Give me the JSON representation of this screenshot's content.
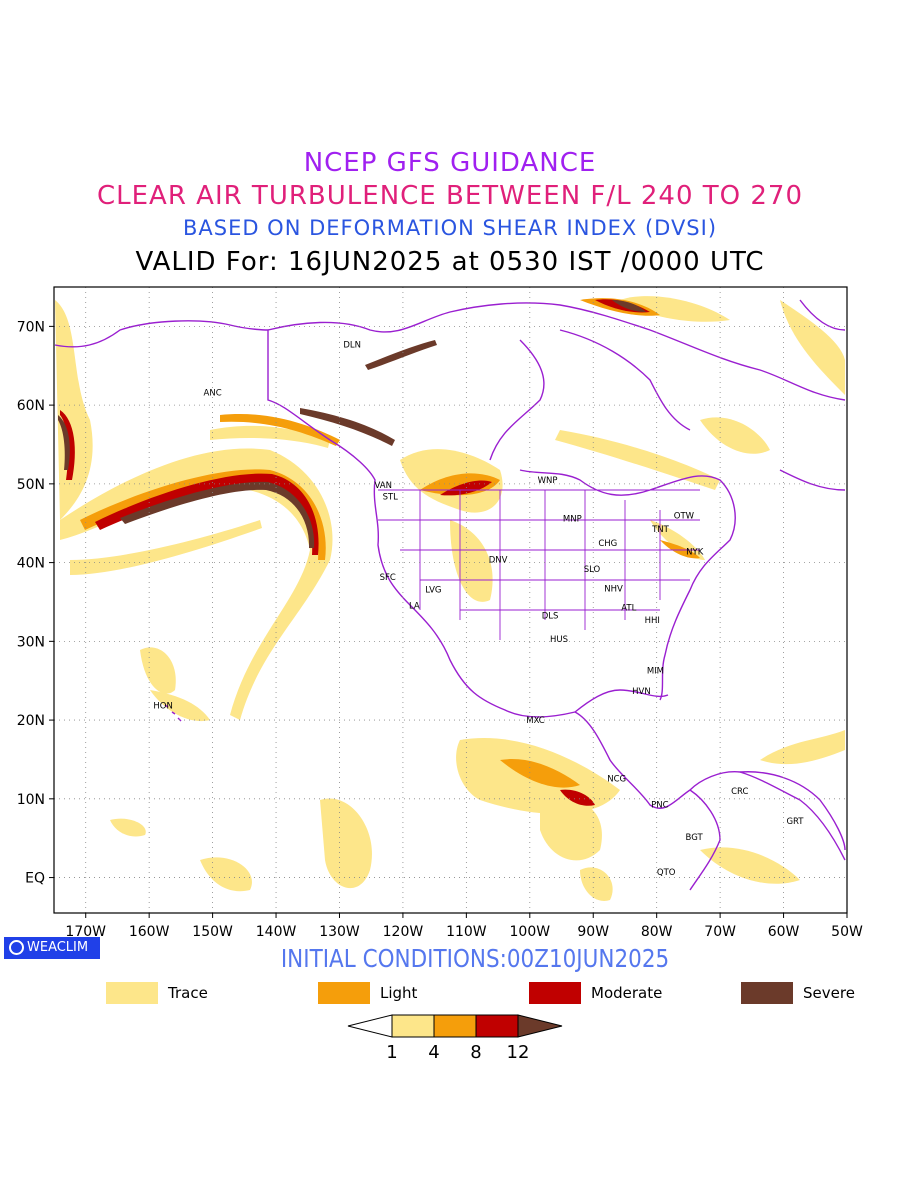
{
  "header": {
    "title_line1": "NCEP GFS GUIDANCE",
    "title_line2": "CLEAR AIR TURBULENCE BETWEEN F/L 240 TO 270",
    "title_line3": "BASED ON DEFORMATION SHEAR INDEX (DVSI)",
    "title_line4": "VALID For: 16JUN2025 at 0530 IST /0000 UTC"
  },
  "map": {
    "lon_ticks": [
      "170W",
      "160W",
      "150W",
      "140W",
      "130W",
      "120W",
      "110W",
      "100W",
      "90W",
      "80W",
      "70W",
      "60W",
      "50W"
    ],
    "lat_ticks": [
      "70N",
      "60N",
      "50N",
      "40N",
      "30N",
      "20N",
      "10N",
      "EQ"
    ],
    "stations": [
      {
        "name": "ANC",
        "lon": -150,
        "lat": 61.2
      },
      {
        "name": "DLN",
        "lon": -128,
        "lat": 67.3
      },
      {
        "name": "VAN",
        "lon": -123.1,
        "lat": 49.5
      },
      {
        "name": "STL",
        "lon": -122,
        "lat": 48
      },
      {
        "name": "WNP",
        "lon": -97.2,
        "lat": 50.1
      },
      {
        "name": "MNP",
        "lon": -93.3,
        "lat": 45.2
      },
      {
        "name": "OTW",
        "lon": -75.7,
        "lat": 45.6
      },
      {
        "name": "TNT",
        "lon": -79.4,
        "lat": 43.9
      },
      {
        "name": "CHG",
        "lon": -87.7,
        "lat": 42.1
      },
      {
        "name": "NYK",
        "lon": -74,
        "lat": 41
      },
      {
        "name": "DNV",
        "lon": -105,
        "lat": 40
      },
      {
        "name": "SFC",
        "lon": -122.4,
        "lat": 37.8
      },
      {
        "name": "SLO",
        "lon": -90.2,
        "lat": 38.8
      },
      {
        "name": "LVG",
        "lon": -115.2,
        "lat": 36.2
      },
      {
        "name": "NHV",
        "lon": -86.8,
        "lat": 36.3
      },
      {
        "name": "LA",
        "lon": -118.2,
        "lat": 34.2
      },
      {
        "name": "ATL",
        "lon": -84.4,
        "lat": 33.9
      },
      {
        "name": "DLS",
        "lon": -96.8,
        "lat": 32.9
      },
      {
        "name": "HHI",
        "lon": -80.7,
        "lat": 32.3
      },
      {
        "name": "HUS",
        "lon": -95.4,
        "lat": 29.9
      },
      {
        "name": "MIM",
        "lon": -80.2,
        "lat": 25.9
      },
      {
        "name": "HVN",
        "lon": -82.4,
        "lat": 23.3
      },
      {
        "name": "HON",
        "lon": -157.8,
        "lat": 21.5
      },
      {
        "name": "MXC",
        "lon": -99.1,
        "lat": 19.6
      },
      {
        "name": "NCG",
        "lon": -86.3,
        "lat": 12.2
      },
      {
        "name": "CRC",
        "lon": -66.9,
        "lat": 10.6
      },
      {
        "name": "PNC",
        "lon": -79.5,
        "lat": 8.9
      },
      {
        "name": "GRT",
        "lon": -58.2,
        "lat": 6.8
      },
      {
        "name": "BGT",
        "lon": -74.1,
        "lat": 4.8
      },
      {
        "name": "QTO",
        "lon": -78.5,
        "lat": 0.3
      }
    ]
  },
  "footer": {
    "brand": "WEACLIM",
    "initial_conditions": "INITIAL CONDITIONS:00Z10JUN2025"
  },
  "legend": {
    "items": [
      {
        "label": "Trace",
        "color": "#fde68a"
      },
      {
        "label": "Light",
        "color": "#f59e0b"
      },
      {
        "label": "Moderate",
        "color": "#c00000"
      },
      {
        "label": "Severe",
        "color": "#6b3a2a"
      }
    ],
    "colorbar_ticks": [
      "1",
      "4",
      "8",
      "12"
    ]
  },
  "colors": {
    "coast": "#9a1fd0",
    "trace": "#fde68a",
    "light": "#f59e0b",
    "moderate": "#c00000",
    "severe": "#6b3a2a"
  }
}
